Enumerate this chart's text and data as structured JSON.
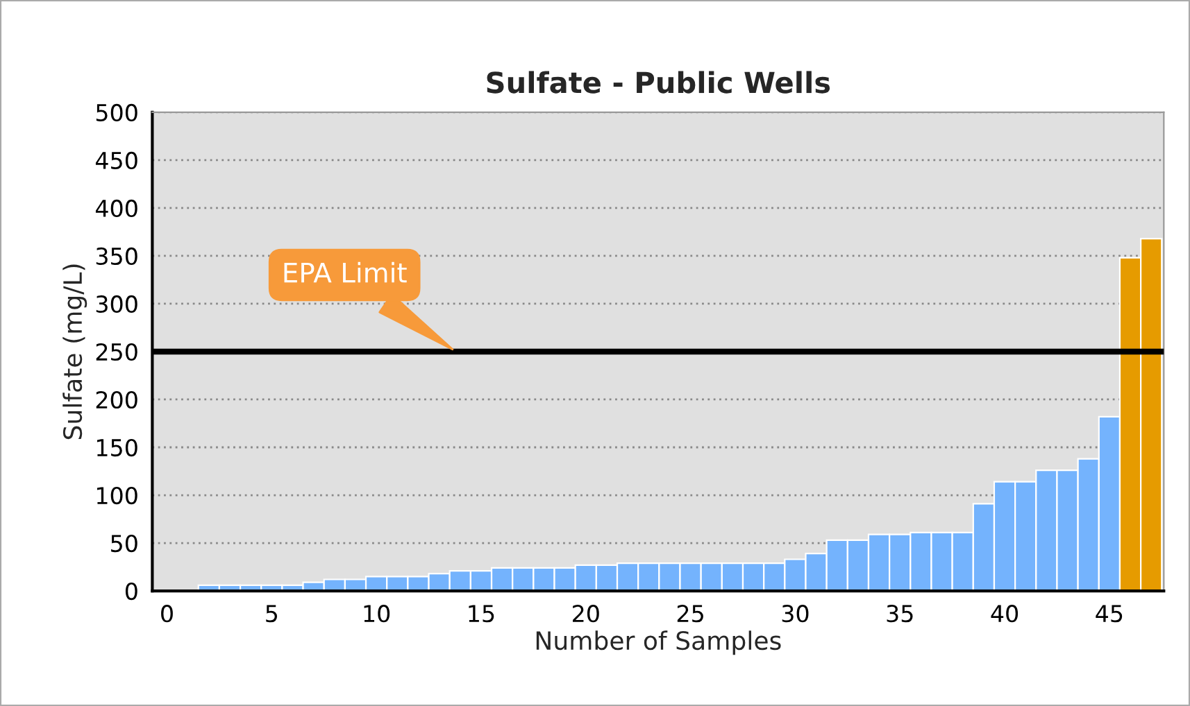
{
  "chart_data": {
    "type": "bar",
    "title": "Sulfate - Public Wells",
    "xlabel": "Number of Samples",
    "ylabel": "Sulfate (mg/L)",
    "x": [
      2,
      3,
      4,
      5,
      6,
      7,
      8,
      9,
      10,
      11,
      12,
      13,
      14,
      15,
      16,
      17,
      18,
      19,
      20,
      21,
      22,
      23,
      24,
      25,
      26,
      27,
      28,
      29,
      30,
      31,
      32,
      33,
      34,
      35,
      36,
      37,
      38,
      39,
      40,
      41,
      42,
      43,
      44,
      45,
      46,
      47
    ],
    "values": [
      6,
      6,
      6,
      6,
      6,
      9,
      12,
      12,
      15,
      15,
      15,
      18,
      21,
      21,
      24,
      24,
      24,
      24,
      27,
      27,
      29,
      29,
      29,
      29,
      29,
      29,
      29,
      29,
      33,
      39,
      53,
      53,
      59,
      59,
      61,
      61,
      61,
      91,
      114,
      114,
      126,
      126,
      138,
      182,
      348,
      368
    ],
    "colors": [
      "#74b3fd",
      "#74b3fd",
      "#74b3fd",
      "#74b3fd",
      "#74b3fd",
      "#74b3fd",
      "#74b3fd",
      "#74b3fd",
      "#74b3fd",
      "#74b3fd",
      "#74b3fd",
      "#74b3fd",
      "#74b3fd",
      "#74b3fd",
      "#74b3fd",
      "#74b3fd",
      "#74b3fd",
      "#74b3fd",
      "#74b3fd",
      "#74b3fd",
      "#74b3fd",
      "#74b3fd",
      "#74b3fd",
      "#74b3fd",
      "#74b3fd",
      "#74b3fd",
      "#74b3fd",
      "#74b3fd",
      "#74b3fd",
      "#74b3fd",
      "#74b3fd",
      "#74b3fd",
      "#74b3fd",
      "#74b3fd",
      "#74b3fd",
      "#74b3fd",
      "#74b3fd",
      "#74b3fd",
      "#74b3fd",
      "#74b3fd",
      "#74b3fd",
      "#74b3fd",
      "#74b3fd",
      "#74b3fd",
      "#e69b00",
      "#e69b00"
    ],
    "xlim": [
      -0.7,
      47.6
    ],
    "xticks": [
      0,
      5,
      10,
      15,
      20,
      25,
      30,
      35,
      40,
      45
    ],
    "ylim": [
      0,
      500
    ],
    "yticks": [
      0,
      50,
      100,
      150,
      200,
      250,
      300,
      350,
      400,
      450,
      500
    ],
    "grid": "y",
    "ref_lines": [
      {
        "axis": "y",
        "value": 250,
        "label": "EPA Limit",
        "color": "#000000",
        "line_style": "solid"
      }
    ]
  }
}
